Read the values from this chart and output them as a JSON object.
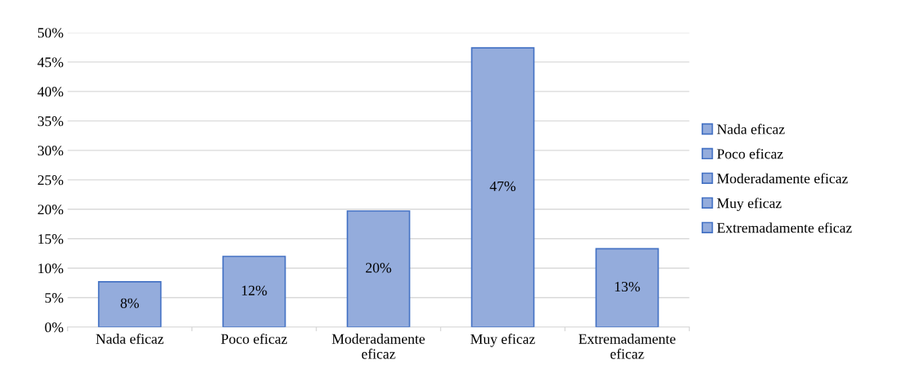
{
  "chart_data": {
    "type": "bar",
    "categories": [
      "Nada eficaz",
      "Poco eficaz",
      "Moderadamente eficaz",
      "Muy eficaz",
      "Extremadamente eficaz"
    ],
    "series": [
      {
        "name": "Nada eficaz",
        "color": "#94acdc",
        "values": [
          7.7,
          null,
          null,
          null,
          null
        ],
        "value_labels": [
          "8%",
          null,
          null,
          null,
          null
        ]
      },
      {
        "name": "Poco eficaz",
        "color": "#94acdc",
        "values": [
          null,
          12,
          null,
          null,
          null
        ],
        "value_labels": [
          null,
          "12%",
          null,
          null,
          null
        ]
      },
      {
        "name": "Moderadamente eficaz",
        "color": "#94acdc",
        "values": [
          null,
          null,
          19.7,
          null,
          null
        ],
        "value_labels": [
          null,
          null,
          "20%",
          null,
          null
        ]
      },
      {
        "name": "Muy eficaz",
        "color": "#94acdc",
        "values": [
          null,
          null,
          null,
          47.4,
          null
        ],
        "value_labels": [
          null,
          null,
          null,
          "47%",
          null
        ]
      },
      {
        "name": "Extremadamente eficaz",
        "color": "#94acdc",
        "values": [
          null,
          null,
          null,
          null,
          13.3
        ],
        "value_labels": [
          null,
          null,
          null,
          null,
          "13%"
        ]
      }
    ],
    "ylim": [
      0,
      50
    ],
    "yticks": [
      {
        "value": 0,
        "label": "0%"
      },
      {
        "value": 5,
        "label": "5%"
      },
      {
        "value": 10,
        "label": "10%"
      },
      {
        "value": 15,
        "label": "15%"
      },
      {
        "value": 20,
        "label": "20%"
      },
      {
        "value": 25,
        "label": "25%"
      },
      {
        "value": 30,
        "label": "30%"
      },
      {
        "value": 35,
        "label": "35%"
      },
      {
        "value": 40,
        "label": "40%"
      },
      {
        "value": 45,
        "label": "45%"
      },
      {
        "value": 50,
        "label": "50%"
      }
    ],
    "grid": "y",
    "legend": "right"
  }
}
